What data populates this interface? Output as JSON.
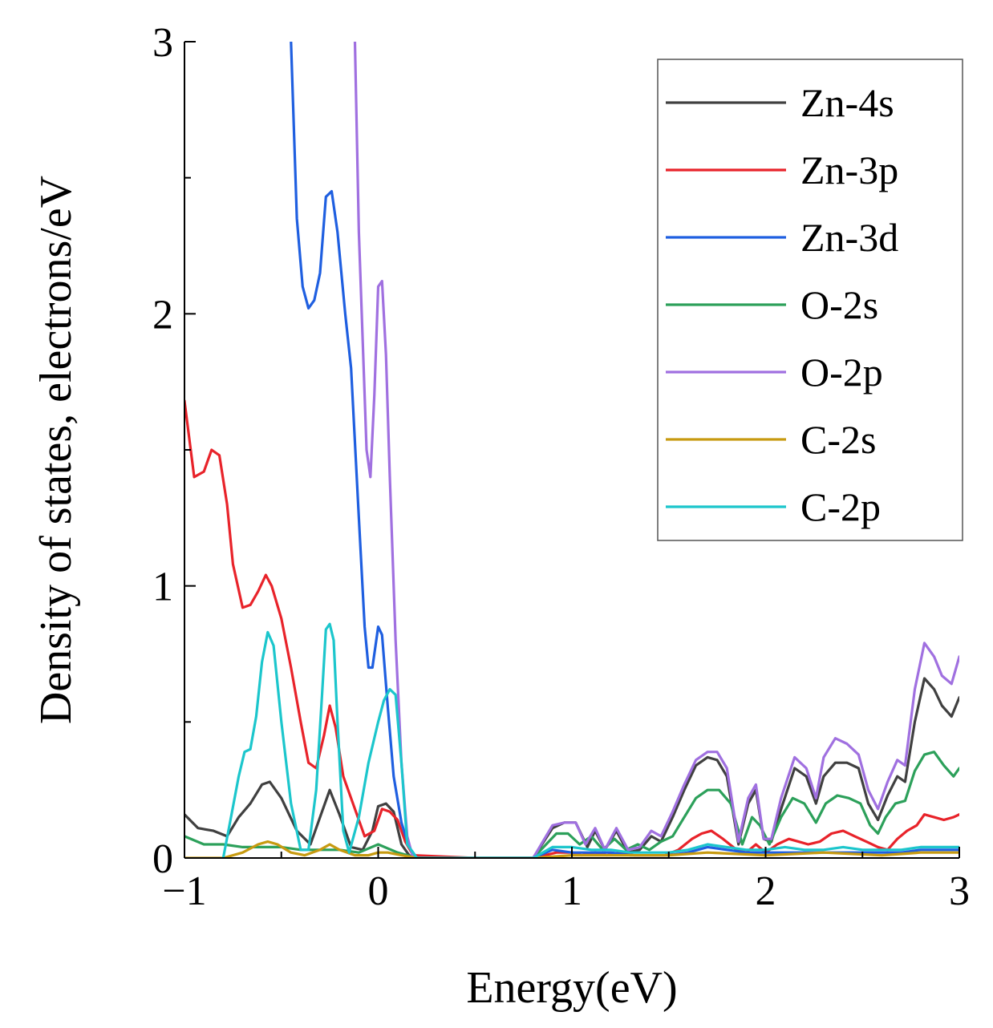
{
  "chart_data": {
    "type": "line",
    "title": "",
    "xlabel": "Energy(eV)",
    "ylabel": "Density of states, electrons/eV",
    "xlim": [
      -1,
      3
    ],
    "ylim": [
      0,
      3
    ],
    "xticks": [
      -1,
      0,
      1,
      2,
      3
    ],
    "xtick_labels": [
      "−1",
      "0",
      "1",
      "2",
      "3"
    ],
    "yticks": [
      0,
      1,
      2,
      3
    ],
    "ytick_labels": [
      "0",
      "1",
      "2",
      "3"
    ],
    "legend_position": "top-right",
    "grid": false,
    "series": [
      {
        "name": "Zn-4s",
        "color": "#404040",
        "x": [
          -1,
          -0.93,
          -0.85,
          -0.78,
          -0.72,
          -0.66,
          -0.6,
          -0.56,
          -0.5,
          -0.42,
          -0.35,
          -0.3,
          -0.25,
          -0.2,
          -0.14,
          -0.08,
          -0.03,
          0.0,
          0.04,
          0.08,
          0.12,
          0.16,
          0.2,
          0.5,
          0.8,
          0.9,
          0.96,
          1.02,
          1.08,
          1.12,
          1.17,
          1.23,
          1.29,
          1.35,
          1.41,
          1.46,
          1.52,
          1.58,
          1.64,
          1.7,
          1.75,
          1.8,
          1.86,
          1.91,
          1.95,
          1.99,
          2.03,
          2.08,
          2.15,
          2.21,
          2.26,
          2.3,
          2.36,
          2.42,
          2.48,
          2.53,
          2.58,
          2.63,
          2.68,
          2.72,
          2.77,
          2.82,
          2.87,
          2.91,
          2.96,
          3.0
        ],
        "y": [
          0.16,
          0.11,
          0.1,
          0.08,
          0.15,
          0.2,
          0.27,
          0.28,
          0.22,
          0.1,
          0.05,
          0.15,
          0.25,
          0.16,
          0.04,
          0.03,
          0.1,
          0.19,
          0.2,
          0.17,
          0.05,
          0.01,
          0.0,
          0.0,
          0.0,
          0.11,
          0.13,
          0.13,
          0.04,
          0.1,
          0.03,
          0.1,
          0.02,
          0.03,
          0.08,
          0.06,
          0.15,
          0.25,
          0.34,
          0.37,
          0.36,
          0.3,
          0.05,
          0.2,
          0.25,
          0.07,
          0.06,
          0.18,
          0.33,
          0.3,
          0.2,
          0.3,
          0.35,
          0.35,
          0.33,
          0.2,
          0.14,
          0.23,
          0.3,
          0.28,
          0.5,
          0.66,
          0.62,
          0.56,
          0.52,
          0.59
        ]
      },
      {
        "name": "Zn-3p",
        "color": "#e8232a",
        "x": [
          -1,
          -0.95,
          -0.9,
          -0.86,
          -0.82,
          -0.78,
          -0.75,
          -0.7,
          -0.66,
          -0.62,
          -0.58,
          -0.55,
          -0.5,
          -0.45,
          -0.4,
          -0.36,
          -0.32,
          -0.28,
          -0.25,
          -0.22,
          -0.18,
          -0.12,
          -0.07,
          -0.02,
          0.02,
          0.06,
          0.1,
          0.14,
          0.18,
          0.5,
          0.8,
          0.92,
          1.0,
          1.05,
          1.12,
          1.18,
          1.25,
          1.32,
          1.4,
          1.48,
          1.55,
          1.62,
          1.67,
          1.72,
          1.78,
          1.85,
          1.9,
          1.95,
          2.0,
          2.06,
          2.12,
          2.17,
          2.22,
          2.28,
          2.34,
          2.4,
          2.46,
          2.52,
          2.58,
          2.63,
          2.68,
          2.73,
          2.78,
          2.82,
          2.87,
          2.92,
          2.97,
          3.0
        ],
        "y": [
          1.68,
          1.4,
          1.42,
          1.5,
          1.48,
          1.3,
          1.08,
          0.92,
          0.93,
          0.98,
          1.04,
          1.0,
          0.88,
          0.7,
          0.5,
          0.35,
          0.33,
          0.45,
          0.56,
          0.48,
          0.3,
          0.18,
          0.08,
          0.1,
          0.18,
          0.17,
          0.14,
          0.06,
          0.01,
          0.0,
          0.0,
          0.02,
          0.02,
          0.01,
          0.02,
          0.01,
          0.02,
          0.01,
          0.01,
          0.01,
          0.03,
          0.07,
          0.09,
          0.1,
          0.07,
          0.03,
          0.02,
          0.05,
          0.02,
          0.05,
          0.07,
          0.06,
          0.05,
          0.06,
          0.09,
          0.1,
          0.08,
          0.06,
          0.04,
          0.03,
          0.07,
          0.1,
          0.12,
          0.16,
          0.15,
          0.14,
          0.15,
          0.16
        ]
      },
      {
        "name": "Zn-3d",
        "color": "#1f5fe0",
        "x": [
          -0.45,
          -0.42,
          -0.39,
          -0.36,
          -0.33,
          -0.3,
          -0.27,
          -0.24,
          -0.21,
          -0.17,
          -0.14,
          -0.1,
          -0.07,
          -0.05,
          -0.03,
          0.0,
          0.02,
          0.05,
          0.08,
          0.12,
          0.16,
          0.2,
          0.5,
          0.8,
          0.9,
          1.0,
          1.1,
          1.2,
          1.3,
          1.4,
          1.5,
          1.6,
          1.7,
          1.8,
          1.9,
          2.0,
          2.1,
          2.2,
          2.3,
          2.4,
          2.5,
          2.6,
          2.7,
          2.8,
          2.9,
          3.0
        ],
        "y": [
          3.0,
          2.35,
          2.1,
          2.02,
          2.05,
          2.15,
          2.43,
          2.45,
          2.3,
          2.0,
          1.8,
          1.25,
          0.85,
          0.7,
          0.7,
          0.85,
          0.82,
          0.55,
          0.3,
          0.13,
          0.04,
          0.0,
          0.0,
          0.0,
          0.03,
          0.02,
          0.02,
          0.02,
          0.01,
          0.01,
          0.01,
          0.02,
          0.04,
          0.03,
          0.02,
          0.02,
          0.02,
          0.02,
          0.02,
          0.02,
          0.02,
          0.02,
          0.02,
          0.03,
          0.03,
          0.03
        ]
      },
      {
        "name": "O-2s",
        "color": "#2ca05a",
        "x": [
          -1,
          -0.9,
          -0.8,
          -0.7,
          -0.6,
          -0.5,
          -0.4,
          -0.3,
          -0.2,
          -0.1,
          0.0,
          0.1,
          0.2,
          0.5,
          0.8,
          0.92,
          0.98,
          1.04,
          1.1,
          1.16,
          1.22,
          1.28,
          1.34,
          1.4,
          1.46,
          1.52,
          1.58,
          1.64,
          1.7,
          1.76,
          1.82,
          1.88,
          1.93,
          1.97,
          2.02,
          2.08,
          2.14,
          2.2,
          2.26,
          2.31,
          2.37,
          2.43,
          2.49,
          2.54,
          2.58,
          2.62,
          2.67,
          2.72,
          2.77,
          2.82,
          2.87,
          2.92,
          2.97,
          3.0
        ],
        "y": [
          0.08,
          0.05,
          0.05,
          0.04,
          0.04,
          0.04,
          0.03,
          0.03,
          0.03,
          0.02,
          0.05,
          0.02,
          0.0,
          0.0,
          0.0,
          0.09,
          0.09,
          0.05,
          0.08,
          0.03,
          0.07,
          0.03,
          0.05,
          0.03,
          0.06,
          0.08,
          0.15,
          0.22,
          0.25,
          0.25,
          0.2,
          0.05,
          0.15,
          0.12,
          0.05,
          0.15,
          0.22,
          0.2,
          0.13,
          0.2,
          0.23,
          0.22,
          0.2,
          0.12,
          0.09,
          0.15,
          0.2,
          0.21,
          0.32,
          0.38,
          0.39,
          0.34,
          0.3,
          0.33
        ]
      },
      {
        "name": "O-2p",
        "color": "#a070e0",
        "x": [
          -0.12,
          -0.1,
          -0.08,
          -0.06,
          -0.04,
          -0.02,
          0.0,
          0.02,
          0.04,
          0.06,
          0.09,
          0.12,
          0.15,
          0.18,
          0.5,
          0.8,
          0.9,
          0.96,
          1.02,
          1.07,
          1.12,
          1.17,
          1.23,
          1.29,
          1.35,
          1.41,
          1.46,
          1.52,
          1.58,
          1.64,
          1.7,
          1.75,
          1.8,
          1.86,
          1.91,
          1.95,
          1.99,
          2.03,
          2.08,
          2.15,
          2.21,
          2.26,
          2.3,
          2.36,
          2.42,
          2.48,
          2.53,
          2.58,
          2.63,
          2.68,
          2.72,
          2.77,
          2.82,
          2.87,
          2.91,
          2.96,
          3.0
        ],
        "y": [
          3.0,
          2.3,
          1.9,
          1.5,
          1.4,
          1.7,
          2.1,
          2.12,
          1.85,
          1.4,
          0.8,
          0.35,
          0.08,
          0.0,
          0.0,
          0.0,
          0.12,
          0.13,
          0.13,
          0.05,
          0.11,
          0.03,
          0.11,
          0.03,
          0.04,
          0.1,
          0.08,
          0.17,
          0.27,
          0.36,
          0.39,
          0.39,
          0.33,
          0.06,
          0.22,
          0.27,
          0.07,
          0.07,
          0.22,
          0.37,
          0.33,
          0.22,
          0.37,
          0.44,
          0.42,
          0.38,
          0.25,
          0.18,
          0.28,
          0.36,
          0.34,
          0.62,
          0.79,
          0.74,
          0.67,
          0.64,
          0.74
        ]
      },
      {
        "name": "C-2s",
        "color": "#c79a10",
        "x": [
          -1,
          -0.9,
          -0.8,
          -0.7,
          -0.62,
          -0.57,
          -0.52,
          -0.45,
          -0.38,
          -0.3,
          -0.25,
          -0.2,
          -0.12,
          -0.05,
          0.0,
          0.05,
          0.12,
          0.2,
          0.5,
          0.8,
          1.0,
          1.5,
          1.7,
          2.0,
          2.3,
          2.6,
          2.8,
          3.0
        ],
        "y": [
          0.0,
          0.0,
          0.0,
          0.02,
          0.05,
          0.06,
          0.05,
          0.02,
          0.01,
          0.03,
          0.05,
          0.03,
          0.01,
          0.01,
          0.02,
          0.02,
          0.01,
          0.0,
          0.0,
          0.0,
          0.01,
          0.01,
          0.02,
          0.01,
          0.02,
          0.01,
          0.02,
          0.02
        ]
      },
      {
        "name": "C-2p",
        "color": "#1cc6cc",
        "x": [
          -0.8,
          -0.76,
          -0.72,
          -0.69,
          -0.66,
          -0.63,
          -0.6,
          -0.57,
          -0.54,
          -0.5,
          -0.45,
          -0.4,
          -0.36,
          -0.32,
          -0.29,
          -0.27,
          -0.25,
          -0.23,
          -0.21,
          -0.18,
          -0.15,
          -0.1,
          -0.05,
          0.0,
          0.03,
          0.06,
          0.09,
          0.12,
          0.15,
          0.2,
          0.5,
          0.8,
          0.9,
          1.0,
          1.1,
          1.2,
          1.3,
          1.4,
          1.5,
          1.6,
          1.7,
          1.8,
          1.9,
          2.0,
          2.1,
          2.2,
          2.3,
          2.4,
          2.5,
          2.6,
          2.7,
          2.8,
          2.9,
          3.0
        ],
        "y": [
          0.0,
          0.15,
          0.3,
          0.39,
          0.4,
          0.52,
          0.72,
          0.83,
          0.78,
          0.5,
          0.2,
          0.03,
          0.03,
          0.25,
          0.6,
          0.84,
          0.86,
          0.8,
          0.5,
          0.1,
          0.02,
          0.15,
          0.35,
          0.5,
          0.58,
          0.62,
          0.6,
          0.35,
          0.05,
          0.0,
          0.0,
          0.0,
          0.04,
          0.04,
          0.03,
          0.03,
          0.02,
          0.02,
          0.02,
          0.03,
          0.05,
          0.04,
          0.03,
          0.03,
          0.04,
          0.03,
          0.03,
          0.04,
          0.03,
          0.03,
          0.03,
          0.04,
          0.04,
          0.04
        ]
      }
    ]
  }
}
